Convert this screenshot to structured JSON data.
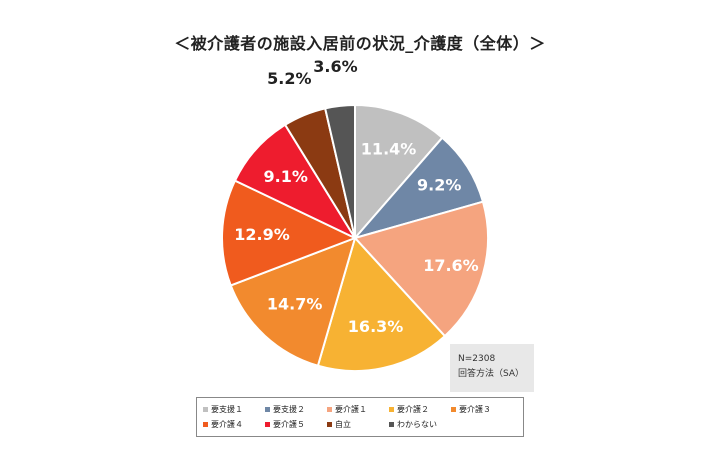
{
  "title": "＜被介護者の施設入居前の状況_介護度（全体）＞",
  "note": {
    "n": "N=2308",
    "method": "回答方法（SA）"
  },
  "chart_data": {
    "type": "pie",
    "title": "＜被介護者の施設入居前の状況_介護度（全体）＞",
    "unit": "%",
    "slices": [
      {
        "name": "要支援１",
        "value": 11.4,
        "label": "11.4%",
        "color": "#c0c0c0"
      },
      {
        "name": "要支援２",
        "value": 9.2,
        "label": "9.2%",
        "color": "#6f87a6"
      },
      {
        "name": "要介護１",
        "value": 17.6,
        "label": "17.6%",
        "color": "#f5a47f"
      },
      {
        "name": "要介護２",
        "value": 16.3,
        "label": "16.3%",
        "color": "#f7b233"
      },
      {
        "name": "要介護３",
        "value": 14.7,
        "label": "14.7%",
        "color": "#f28a2e"
      },
      {
        "name": "要介護４",
        "value": 12.9,
        "label": "12.9%",
        "color": "#f05b1e"
      },
      {
        "name": "要介護５",
        "value": 9.1,
        "label": "9.1%",
        "color": "#ee1c2e"
      },
      {
        "name": "自立",
        "value": 5.2,
        "label": "5.2%",
        "color": "#8b3a12"
      },
      {
        "name": "わからない",
        "value": 3.6,
        "label": "3.6%",
        "color": "#555555"
      }
    ],
    "legend_position": "bottom"
  }
}
